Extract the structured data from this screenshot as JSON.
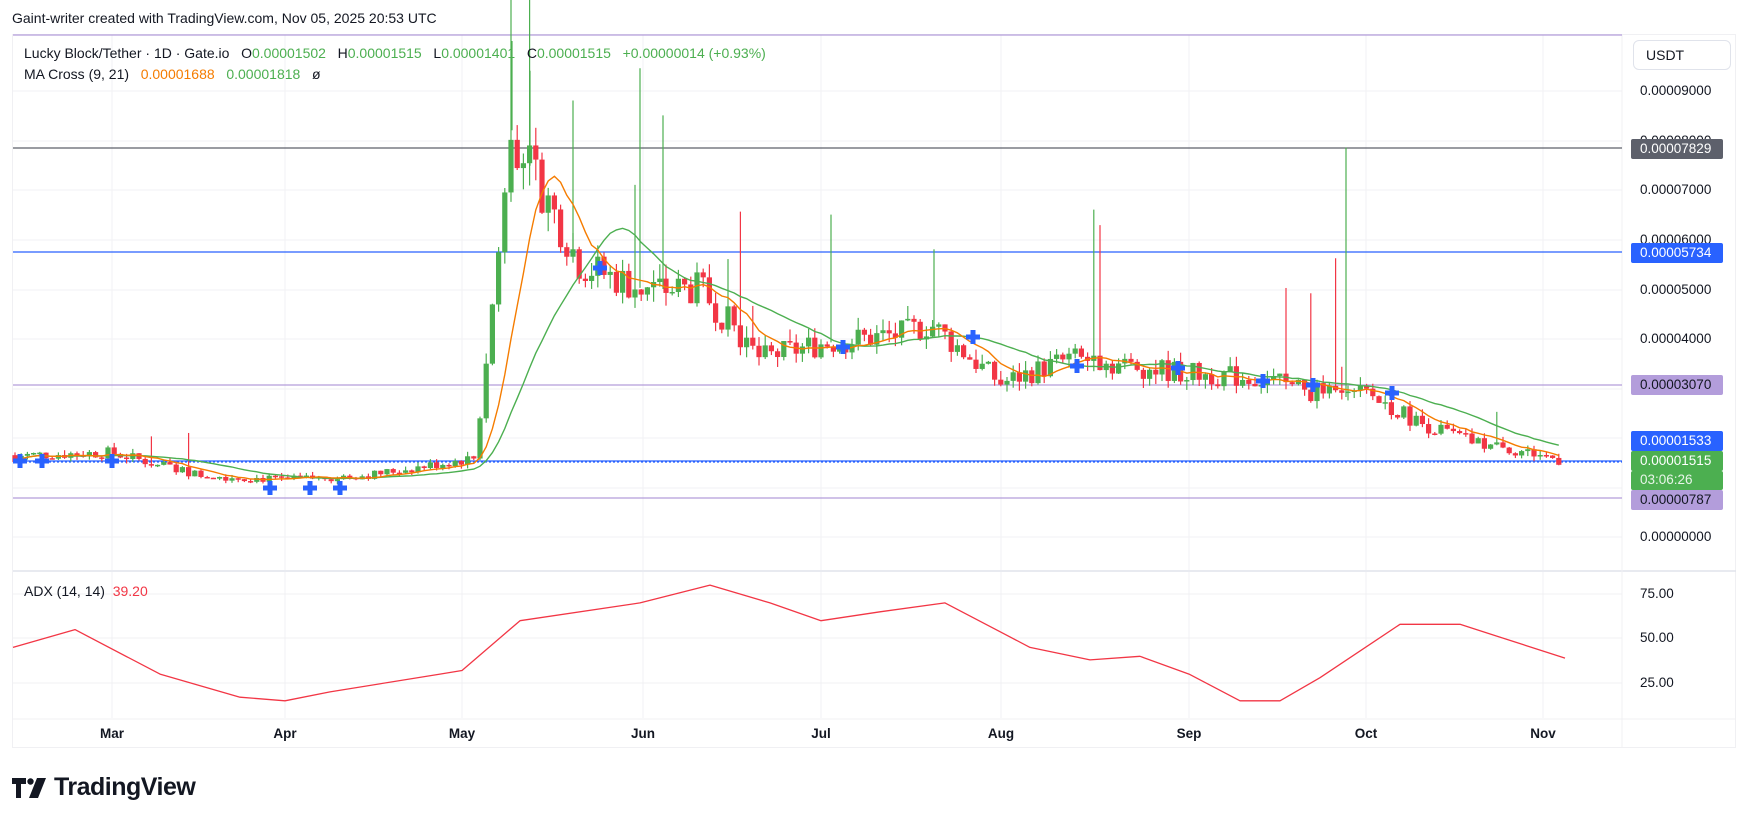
{
  "credit": "Gaint-writer created with TradingView.com, Nov 05, 2025 20:53 UTC",
  "legend": {
    "symbol": "Lucky Block/Tether · 1D · Gate.io",
    "o_label": "O",
    "o_value": "0.00001502",
    "h_label": "H",
    "h_value": "0.00001515",
    "l_label": "L",
    "l_value": "0.00001401",
    "c_label": "C",
    "c_value": "0.00001515",
    "change": "+0.00000014 (+0.93%)",
    "ma_label": "MA Cross (9, 21)",
    "ma_fast": "0.00001688",
    "ma_slow": "0.00001818",
    "ma_extra": "ø"
  },
  "adx_legend": {
    "label": "ADX (14, 14)",
    "value": "39.20"
  },
  "currency_button": "USDT",
  "price_ticks": [
    "0.00009000",
    "0.00008000",
    "0.00007000",
    "0.00006000",
    "0.00005000",
    "0.00004000",
    "0.00000000"
  ],
  "price_labels": [
    {
      "text": "0.00007829",
      "color": "#5d606b",
      "text_color": "#ffffff"
    },
    {
      "text": "0.00005734",
      "color": "#2962ff",
      "text_color": "#ffffff"
    },
    {
      "text": "0.00003070",
      "color": "#b39ddb",
      "text_color": "#131722"
    },
    {
      "text": "0.00001533",
      "color": "#2962ff",
      "text_color": "#ffffff"
    },
    {
      "text": "0.00001515",
      "color": "#4caf50",
      "text_color": "#ffffff"
    },
    {
      "text": "03:06:26",
      "color": "#4caf50",
      "text_color": "#e8f5e9"
    },
    {
      "text": "0.00000787",
      "color": "#b39ddb",
      "text_color": "#131722"
    }
  ],
  "adx_ticks": [
    "75.00",
    "50.00",
    "25.00"
  ],
  "months": [
    "Mar",
    "Apr",
    "May",
    "Jun",
    "Jul",
    "Aug",
    "Sep",
    "Oct",
    "Nov"
  ],
  "brand": "TradingView",
  "colors": {
    "up": "#4caf50",
    "down": "#f23645",
    "ma_fast": "#f57c00",
    "ma_slow": "#4caf50",
    "adx": "#f23645",
    "hline_blue": "#2962ff",
    "hline_gray": "#5d606b",
    "hline_lavender": "#b39ddb",
    "cross_marker": "#2962ff"
  },
  "chart_data": [
    {
      "type": "candlestick",
      "title": "Lucky Block/Tether · 1D · Gate.io",
      "xlabel": "",
      "ylabel": "USDT",
      "x_ticks": [
        "Mar",
        "Apr",
        "May",
        "Jun",
        "Jul",
        "Aug",
        "Sep",
        "Oct",
        "Nov"
      ],
      "ylim": [
        -5e-06,
        0.0001
      ],
      "y_ticks": [
        9e-05,
        8e-05,
        7e-05,
        6e-05,
        5e-05,
        4e-05,
        0.0
      ],
      "grid": true,
      "last": {
        "open": 1.502e-05,
        "high": 1.515e-05,
        "low": 1.401e-05,
        "close": 1.515e-05,
        "change": 1.4e-07,
        "change_pct": 0.93
      },
      "horizontal_lines": [
        {
          "value": 9.99e-05,
          "color": "#b39ddb"
        },
        {
          "value": 7.829e-05,
          "color": "#5d606b"
        },
        {
          "value": 5.734e-05,
          "color": "#2962ff"
        },
        {
          "value": 3.07e-05,
          "color": "#b39ddb"
        },
        {
          "value": 1.533e-05,
          "color": "#2962ff"
        },
        {
          "value": 7.87e-06,
          "color": "#b39ddb"
        }
      ],
      "series": [
        {
          "name": "MA 9",
          "color": "#f57c00",
          "last": 1.688e-05
        },
        {
          "name": "MA 21",
          "color": "#4caf50",
          "last": 1.818e-05
        }
      ],
      "approx_close_path": {
        "dates": [
          "Feb-15",
          "Mar-01",
          "Mar-15",
          "Apr-01",
          "Apr-15",
          "May-01",
          "May-05",
          "May-09",
          "May-12",
          "May-20",
          "Jun-01",
          "Jun-10",
          "Jun-20",
          "Jul-01",
          "Jul-15",
          "Jul-20",
          "Aug-01",
          "Aug-15",
          "Sep-01",
          "Sep-15",
          "Sep-25",
          "Oct-01",
          "Oct-10",
          "Oct-20",
          "Nov-01",
          "Nov-05"
        ],
        "close": [
          1.65e-05,
          1.7e-05,
          1.25e-05,
          1.15e-05,
          1.25e-05,
          1.55e-05,
          1.6e-05,
          6e-05,
          8.2e-05,
          5.5e-05,
          5e-05,
          5e-05,
          3.6e-05,
          3.9e-05,
          4.1e-05,
          4.3e-05,
          3.1e-05,
          3.6e-05,
          3.3e-05,
          3.2e-05,
          2.8e-05,
          2.9e-05,
          2.3e-05,
          1.9e-05,
          1.65e-05,
          1.515e-05
        ]
      }
    },
    {
      "type": "line",
      "title": "ADX (14, 14)",
      "last": 39.2,
      "y_ticks": [
        75,
        50,
        25
      ],
      "x_ticks": [
        "Mar",
        "Apr",
        "May",
        "Jun",
        "Jul",
        "Aug",
        "Sep",
        "Oct",
        "Nov"
      ],
      "series": [
        {
          "name": "ADX",
          "color": "#f23645",
          "x": [
            "Feb-12",
            "Feb-28",
            "Mar-15",
            "Apr-01",
            "Apr-10",
            "Apr-20",
            "May-01",
            "May-05",
            "May-15",
            "Jun-01",
            "Jun-12",
            "Jun-20",
            "Jul-01",
            "Jul-10",
            "Jul-22",
            "Aug-01",
            "Aug-10",
            "Aug-20",
            "Sep-01",
            "Sep-10",
            "Sep-18",
            "Sep-28",
            "Oct-10",
            "Oct-20",
            "Nov-04"
          ],
          "values": [
            45,
            55,
            30,
            17,
            15,
            20,
            30,
            32,
            60,
            70,
            80,
            70,
            60,
            65,
            70,
            45,
            38,
            40,
            30,
            15,
            15,
            28,
            58,
            58,
            39
          ]
        }
      ]
    }
  ]
}
